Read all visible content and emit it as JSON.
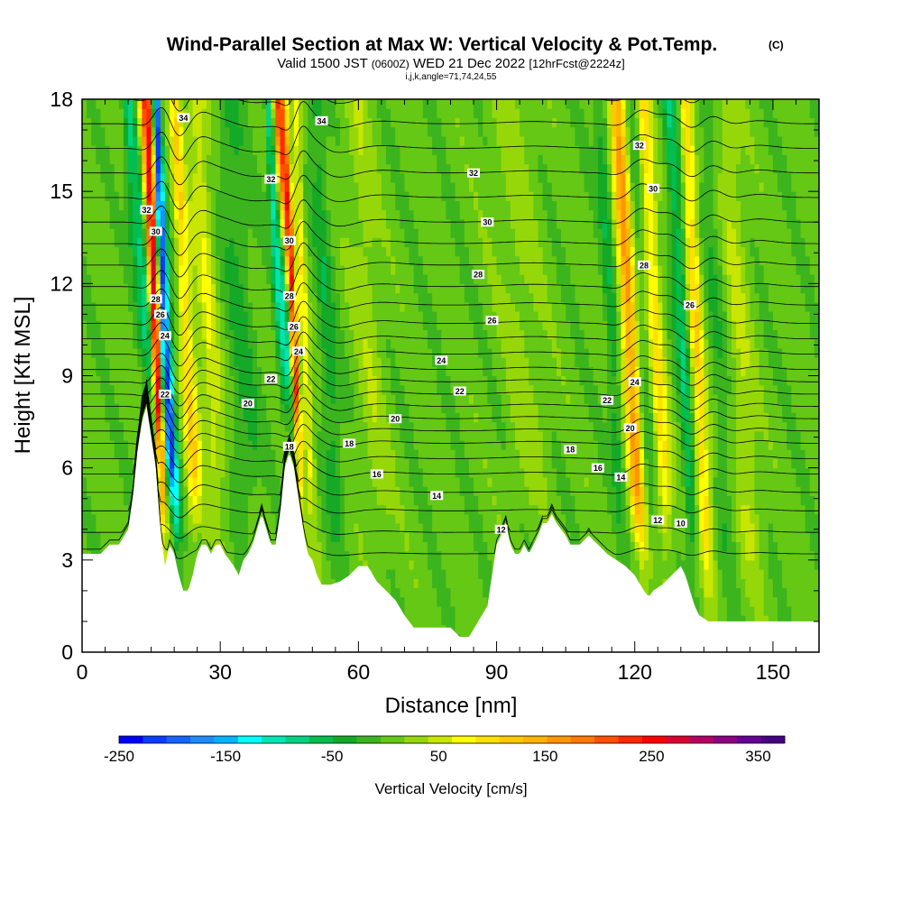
{
  "title": {
    "main": "Wind-Parallel Section at Max W: Vertical Velocity & Pot.Temp.",
    "copyright": "(C)",
    "valid_prefix": "Valid 1500 JST",
    "utc": "(0600Z)",
    "valid_date": "WED 21 Dec 2022",
    "forecast": "[12hrFcst@2224z]",
    "indices": "i,j,k,angle=71,74,24,55"
  },
  "chart_data": {
    "type": "heatmap",
    "xlabel": "Distance [nm]",
    "ylabel": "Height [Kft MSL]",
    "xlim": [
      0,
      160
    ],
    "ylim": [
      0,
      18
    ],
    "x_ticks": [
      0,
      30,
      60,
      90,
      120,
      150
    ],
    "y_ticks": [
      0,
      3,
      6,
      9,
      12,
      15,
      18
    ],
    "colorbar": {
      "label": "Vertical Velocity [cm/s]",
      "tick_labels": [
        "-250",
        "-150",
        "-50",
        "50",
        "150",
        "250",
        "350"
      ],
      "tick_values": [
        -250,
        -150,
        -50,
        50,
        150,
        250,
        350
      ],
      "range": [
        -250,
        375
      ],
      "step": 25,
      "colors": [
        "#0000ff",
        "#0a3cff",
        "#1464ff",
        "#1e8cff",
        "#00b4ff",
        "#00ffff",
        "#00e6b4",
        "#00d282",
        "#00be50",
        "#14aa28",
        "#3cb41e",
        "#64c814",
        "#96d70a",
        "#c8e600",
        "#ffff00",
        "#ffe100",
        "#ffc800",
        "#ffb400",
        "#ff9600",
        "#ff7800",
        "#ff5000",
        "#ff2800",
        "#ff0000",
        "#dc0032",
        "#b40064",
        "#8c0082",
        "#640096",
        "#460082"
      ]
    },
    "terrain_kft": [
      [
        0,
        3.2
      ],
      [
        2,
        3.2
      ],
      [
        4,
        3.2
      ],
      [
        6,
        3.5
      ],
      [
        8,
        3.5
      ],
      [
        10,
        4.0
      ],
      [
        11,
        5.0
      ],
      [
        12,
        6.5
      ],
      [
        13,
        7.5
      ],
      [
        14,
        8.0
      ],
      [
        15,
        7.0
      ],
      [
        16,
        6.0
      ],
      [
        17,
        4.0
      ],
      [
        18,
        2.8
      ],
      [
        19,
        3.5
      ],
      [
        20,
        3.2
      ],
      [
        21,
        2.5
      ],
      [
        22,
        2.0
      ],
      [
        23,
        2.0
      ],
      [
        24,
        2.5
      ],
      [
        25,
        3.2
      ],
      [
        26,
        3.5
      ],
      [
        27,
        3.5
      ],
      [
        28,
        3.2
      ],
      [
        29,
        3.5
      ],
      [
        30,
        3.5
      ],
      [
        31,
        3.2
      ],
      [
        32,
        3.0
      ],
      [
        33,
        2.8
      ],
      [
        34,
        2.5
      ],
      [
        35,
        3.0
      ],
      [
        36,
        3.2
      ],
      [
        37,
        3.5
      ],
      [
        38,
        4.0
      ],
      [
        39,
        4.5
      ],
      [
        40,
        4.0
      ],
      [
        41,
        3.5
      ],
      [
        42,
        3.5
      ],
      [
        43,
        4.5
      ],
      [
        44,
        6.0
      ],
      [
        45,
        6.5
      ],
      [
        46,
        6.0
      ],
      [
        47,
        5.0
      ],
      [
        48,
        4.0
      ],
      [
        49,
        3.2
      ],
      [
        50,
        3.0
      ],
      [
        51,
        2.5
      ],
      [
        52,
        2.2
      ],
      [
        54,
        2.2
      ],
      [
        56,
        2.3
      ],
      [
        58,
        2.5
      ],
      [
        60,
        2.8
      ],
      [
        62,
        2.8
      ],
      [
        64,
        2.3
      ],
      [
        66,
        2.0
      ],
      [
        68,
        1.7
      ],
      [
        70,
        1.2
      ],
      [
        72,
        0.8
      ],
      [
        74,
        0.8
      ],
      [
        76,
        0.8
      ],
      [
        78,
        0.8
      ],
      [
        80,
        0.8
      ],
      [
        82,
        0.5
      ],
      [
        84,
        0.5
      ],
      [
        86,
        1.0
      ],
      [
        88,
        1.5
      ],
      [
        89,
        2.5
      ],
      [
        90,
        3.5
      ],
      [
        91,
        3.8
      ],
      [
        92,
        4.2
      ],
      [
        93,
        3.5
      ],
      [
        94,
        3.2
      ],
      [
        95,
        3.2
      ],
      [
        96,
        3.5
      ],
      [
        97,
        3.2
      ],
      [
        98,
        3.5
      ],
      [
        99,
        3.8
      ],
      [
        100,
        4.2
      ],
      [
        101,
        4.2
      ],
      [
        102,
        4.5
      ],
      [
        103,
        4.2
      ],
      [
        104,
        4.0
      ],
      [
        105,
        3.8
      ],
      [
        106,
        3.5
      ],
      [
        108,
        3.5
      ],
      [
        110,
        3.8
      ],
      [
        112,
        3.5
      ],
      [
        114,
        3.2
      ],
      [
        116,
        3.0
      ],
      [
        118,
        2.8
      ],
      [
        120,
        2.5
      ],
      [
        122,
        2.0
      ],
      [
        123,
        1.8
      ],
      [
        124,
        2.0
      ],
      [
        126,
        2.2
      ],
      [
        128,
        2.5
      ],
      [
        130,
        2.8
      ],
      [
        131,
        2.5
      ],
      [
        132,
        2.0
      ],
      [
        133,
        1.5
      ],
      [
        134,
        1.2
      ],
      [
        136,
        1.0
      ],
      [
        140,
        1.0
      ],
      [
        150,
        1.0
      ],
      [
        160,
        1.0
      ]
    ],
    "updraft_bands": [
      {
        "x": 17.5,
        "w": 1.5,
        "peak": 300
      },
      {
        "x": 20.5,
        "w": 1.3,
        "peak": -250
      },
      {
        "x": 15.0,
        "w": 1.2,
        "peak": -110
      },
      {
        "x": 25.5,
        "w": 1.5,
        "peak": 110
      },
      {
        "x": 30.0,
        "w": 2.0,
        "peak": 60
      },
      {
        "x": 37.0,
        "w": 3.0,
        "peak": -40
      },
      {
        "x": 47.5,
        "w": 1.0,
        "peak": 260
      },
      {
        "x": 45.5,
        "w": 1.0,
        "peak": -120
      },
      {
        "x": 50.5,
        "w": 1.2,
        "peak": 80
      },
      {
        "x": 56.0,
        "w": 2.0,
        "peak": -50
      },
      {
        "x": 65.0,
        "w": 3.0,
        "peak": 30
      },
      {
        "x": 98.0,
        "w": 4.0,
        "peak": 25
      },
      {
        "x": 117.5,
        "w": 1.5,
        "peak": -50
      },
      {
        "x": 121.5,
        "w": 1.8,
        "peak": 170
      },
      {
        "x": 124.5,
        "w": 1.5,
        "peak": -30
      },
      {
        "x": 127.5,
        "w": 1.5,
        "peak": 100
      },
      {
        "x": 133.0,
        "w": 1.5,
        "peak": -80
      },
      {
        "x": 136.5,
        "w": 1.6,
        "peak": 110
      },
      {
        "x": 141.0,
        "w": 2.0,
        "peak": -30
      },
      {
        "x": 146.0,
        "w": 2.5,
        "peak": 40
      }
    ],
    "background_w": 35,
    "isentropes": {
      "levels_kft": [
        3.2,
        3.9,
        4.6,
        5.2,
        5.8,
        6.3,
        6.8,
        7.2,
        7.6,
        8.0,
        8.4,
        8.8,
        9.2,
        9.7,
        10.2,
        10.7,
        11.3,
        11.9,
        12.6,
        13.3,
        14.0,
        14.8,
        15.6,
        16.4,
        17.2,
        18.0
      ],
      "labels": [
        {
          "text": "34",
          "x": 22,
          "y": 17.4
        },
        {
          "text": "34",
          "x": 52,
          "y": 17.3
        },
        {
          "text": "32",
          "x": 14,
          "y": 14.4
        },
        {
          "text": "32",
          "x": 41,
          "y": 15.4
        },
        {
          "text": "32",
          "x": 85,
          "y": 15.6
        },
        {
          "text": "32",
          "x": 121,
          "y": 16.5
        },
        {
          "text": "30",
          "x": 16,
          "y": 13.7
        },
        {
          "text": "30",
          "x": 45,
          "y": 13.4
        },
        {
          "text": "30",
          "x": 88,
          "y": 14.0
        },
        {
          "text": "30",
          "x": 124,
          "y": 15.1
        },
        {
          "text": "28",
          "x": 16,
          "y": 11.5
        },
        {
          "text": "28",
          "x": 45,
          "y": 11.6
        },
        {
          "text": "28",
          "x": 86,
          "y": 12.3
        },
        {
          "text": "28",
          "x": 122,
          "y": 12.6
        },
        {
          "text": "26",
          "x": 17,
          "y": 11.0
        },
        {
          "text": "26",
          "x": 46,
          "y": 10.6
        },
        {
          "text": "26",
          "x": 89,
          "y": 10.8
        },
        {
          "text": "26",
          "x": 132,
          "y": 11.3
        },
        {
          "text": "24",
          "x": 18,
          "y": 10.3
        },
        {
          "text": "24",
          "x": 47,
          "y": 9.8
        },
        {
          "text": "24",
          "x": 78,
          "y": 9.5
        },
        {
          "text": "24",
          "x": 120,
          "y": 8.8
        },
        {
          "text": "22",
          "x": 18,
          "y": 8.4
        },
        {
          "text": "22",
          "x": 41,
          "y": 8.9
        },
        {
          "text": "22",
          "x": 82,
          "y": 8.5
        },
        {
          "text": "22",
          "x": 114,
          "y": 8.2
        },
        {
          "text": "20",
          "x": 36,
          "y": 8.1
        },
        {
          "text": "20",
          "x": 68,
          "y": 7.6
        },
        {
          "text": "20",
          "x": 119,
          "y": 7.3
        },
        {
          "text": "18",
          "x": 45,
          "y": 6.7
        },
        {
          "text": "18",
          "x": 58,
          "y": 6.8
        },
        {
          "text": "18",
          "x": 106,
          "y": 6.6
        },
        {
          "text": "16",
          "x": 64,
          "y": 5.8
        },
        {
          "text": "16",
          "x": 112,
          "y": 6.0
        },
        {
          "text": "14",
          "x": 77,
          "y": 5.1
        },
        {
          "text": "14",
          "x": 117,
          "y": 5.7
        },
        {
          "text": "12",
          "x": 91,
          "y": 4.0
        },
        {
          "text": "12",
          "x": 125,
          "y": 4.3
        },
        {
          "text": "10",
          "x": 130,
          "y": 4.2
        }
      ]
    }
  }
}
